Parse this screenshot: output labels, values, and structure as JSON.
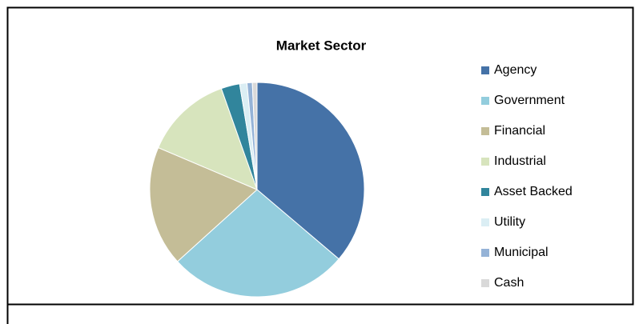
{
  "chart_data": {
    "type": "pie",
    "title": "Market Sector",
    "categories": [
      "Agency",
      "Government",
      "Financial",
      "Industrial",
      "Asset Backed",
      "Utility",
      "Municipal",
      "Cash"
    ],
    "values": [
      36.2,
      27.1,
      18.1,
      13.2,
      2.8,
      1.1,
      0.8,
      0.7
    ],
    "colors": [
      "#4572a7",
      "#93cddd",
      "#c4bd97",
      "#d7e4bd",
      "#31859c",
      "#dbeef4",
      "#95b3d7",
      "#d9d9d9"
    ],
    "legend": "right"
  }
}
